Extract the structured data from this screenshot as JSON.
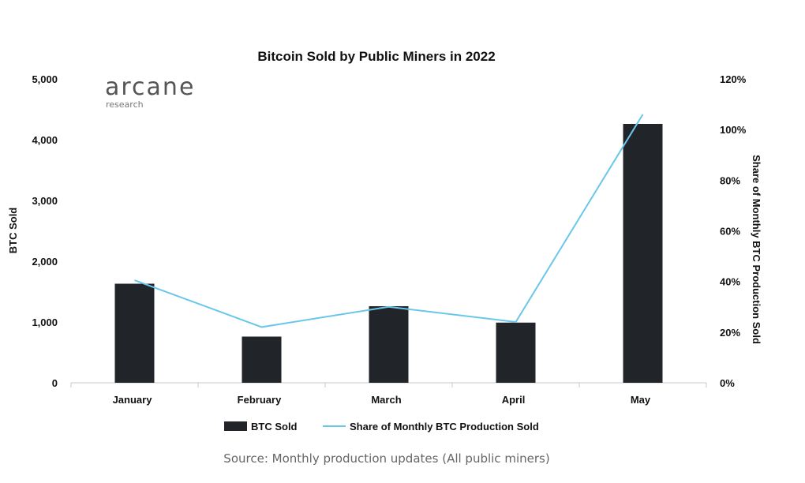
{
  "chart_data": {
    "type": "bar",
    "title": "Bitcoin Sold by Public Miners in 2022",
    "categories": [
      "January",
      "February",
      "March",
      "April",
      "May"
    ],
    "series": [
      {
        "name": "BTC Sold",
        "type": "bar",
        "axis": "left",
        "color": "#212529",
        "values": [
          1630,
          760,
          1260,
          990,
          4260
        ]
      },
      {
        "name": "Share of Monthly BTC Production Sold",
        "type": "line",
        "axis": "right",
        "color": "#6ac7ea",
        "values": [
          40.5,
          22,
          30,
          24,
          106
        ]
      }
    ],
    "ylabel": "BTC Sold",
    "ylim": [
      0,
      5000
    ],
    "yticks": [
      "0",
      "1,000",
      "2,000",
      "3,000",
      "4,000",
      "5,000"
    ],
    "y2label": "Share of Monthly BTC Production Sold",
    "y2lim": [
      0,
      120
    ],
    "y2ticks": [
      "0%",
      "20%",
      "40%",
      "60%",
      "80%",
      "100%",
      "120%"
    ],
    "grid": false,
    "legend_position": "bottom"
  },
  "logo": {
    "main": "arcane",
    "sub": "research"
  },
  "source": "Source: Monthly production updates (All public miners)"
}
